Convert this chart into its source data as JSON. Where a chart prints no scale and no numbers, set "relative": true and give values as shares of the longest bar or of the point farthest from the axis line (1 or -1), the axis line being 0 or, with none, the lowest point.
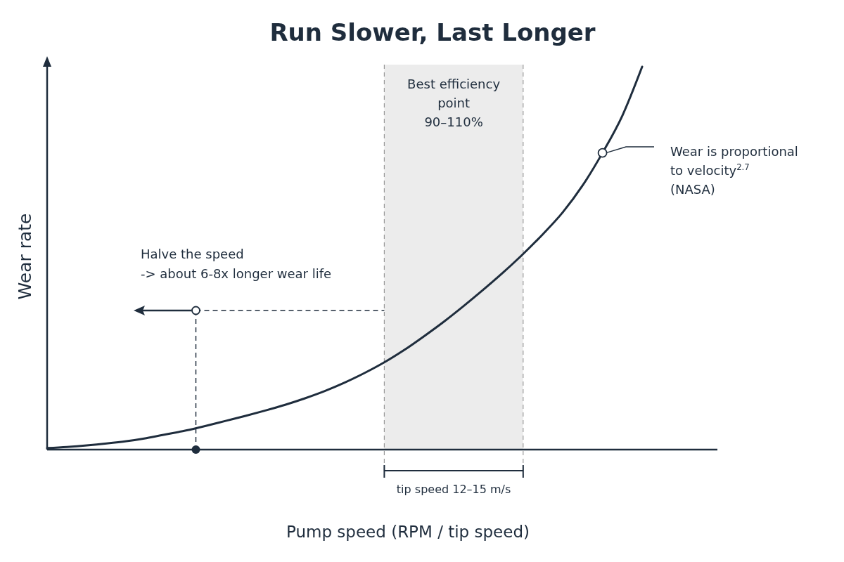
{
  "chart_data": {
    "type": "line",
    "title": "Run Slower, Last Longer",
    "xlabel": "Pump speed (RPM / tip speed)",
    "ylabel": "Wear rate",
    "relative": true,
    "categories": [
      null,
      null,
      null,
      null,
      null,
      null,
      null,
      null,
      null,
      null,
      null,
      null,
      null,
      null,
      null,
      null,
      null,
      null,
      null,
      null,
      null,
      null,
      null,
      null,
      null,
      null,
      null,
      null,
      null,
      null,
      null
    ],
    "series": [
      {
        "color": "#1f2d3d",
        "values": [
          0.004,
          0.007,
          0.011,
          0.016,
          0.022,
          0.03,
          0.04,
          0.05,
          0.062,
          0.075,
          0.088,
          0.102,
          0.117,
          0.134,
          0.153,
          0.175,
          0.2,
          0.228,
          0.26,
          0.296,
          0.334,
          0.375,
          0.418,
          0.463,
          0.511,
          0.563,
          0.62,
          0.69,
          0.775,
          0.872,
          1.0
        ]
      }
    ],
    "annotations": [
      "Best efficiency\npoint\n90–110%",
      "Halve the speed\n-> about 6-8x longer wear life",
      "Wear is proportional\nto velocity$^{2.7}$\n(NASA)",
      "tip speed 12–15 m/s"
    ]
  }
}
